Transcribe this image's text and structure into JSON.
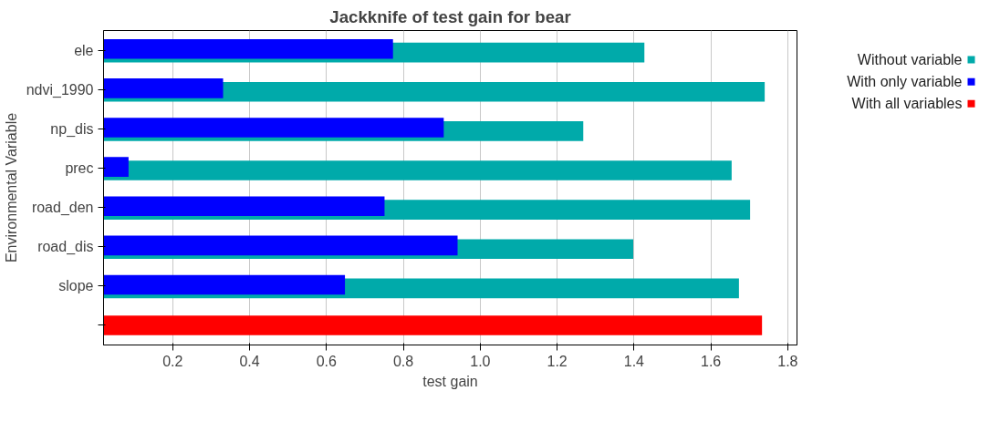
{
  "chart_data": {
    "type": "bar",
    "orientation": "horizontal",
    "title": "Jackknife of test gain for bear",
    "xlabel": "test gain",
    "ylabel": "Environmental Variable",
    "categories": [
      "ele",
      "ndvi_1990",
      "np_dis",
      "prec",
      "road_den",
      "road_dis",
      "slope",
      null
    ],
    "series": [
      {
        "name": "Without variable",
        "color": "#00aaaa",
        "values": [
          1.427,
          1.74,
          1.268,
          1.654,
          1.702,
          1.398,
          1.673,
          null
        ]
      },
      {
        "name": "With only variable",
        "color": "#0000ff",
        "values": [
          0.773,
          0.331,
          0.905,
          0.085,
          0.751,
          0.941,
          0.648,
          null
        ]
      },
      {
        "name": "With all variables",
        "color": "#ff0000",
        "values": [
          null,
          null,
          null,
          null,
          null,
          null,
          null,
          1.733
        ]
      }
    ],
    "xlim": [
      0.02,
      1.824
    ],
    "xticks": [
      0.2,
      0.4,
      0.6,
      0.8,
      {
        "value": 1.0,
        "label": "1.0"
      },
      1.2,
      1.4,
      1.6,
      1.8
    ],
    "grid": "x",
    "legend": "right"
  }
}
